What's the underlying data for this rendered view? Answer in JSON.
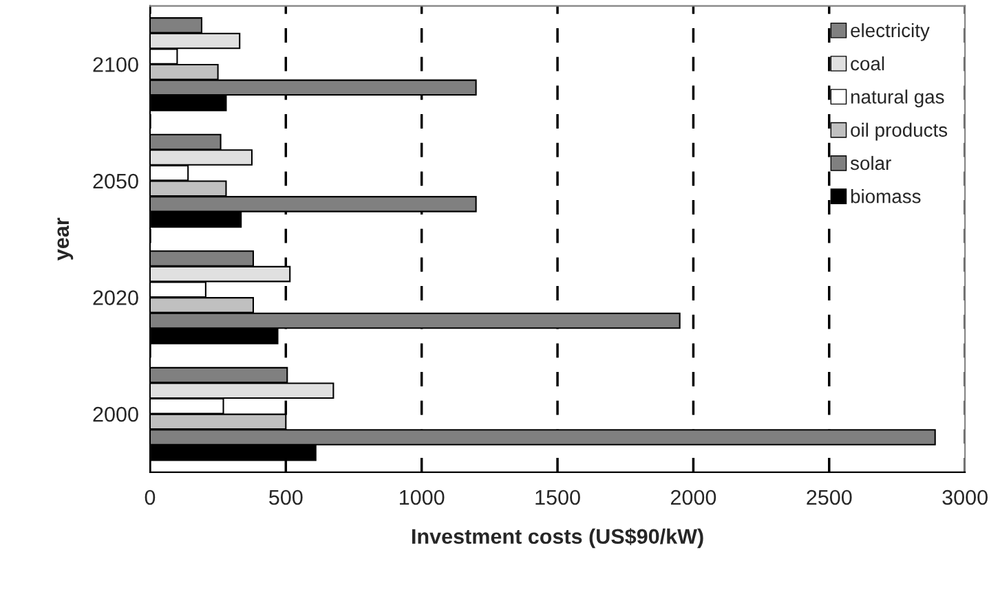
{
  "chart_data": {
    "type": "bar",
    "orientation": "horizontal",
    "xlabel": "Investment costs (US$90/kW)",
    "ylabel": "year",
    "categories": [
      "2100",
      "2050",
      "2020",
      "2000"
    ],
    "series": [
      {
        "name": "electricity",
        "color": "#808080",
        "values": [
          190,
          260,
          380,
          505
        ]
      },
      {
        "name": "coal",
        "color": "#e0e0e0",
        "values": [
          330,
          375,
          515,
          675
        ]
      },
      {
        "name": "natural gas",
        "color": "#ffffff",
        "values": [
          100,
          140,
          205,
          270
        ]
      },
      {
        "name": "oil products",
        "color": "#c0c0c0",
        "values": [
          250,
          280,
          380,
          500
        ]
      },
      {
        "name": "solar",
        "color": "#808080",
        "values": [
          1200,
          1200,
          1950,
          2890
        ]
      },
      {
        "name": "biomass",
        "color": "#000000",
        "values": [
          280,
          335,
          470,
          610
        ]
      }
    ],
    "xlim": [
      0,
      3000
    ],
    "xticks": [
      0,
      500,
      1000,
      1500,
      2000,
      2500,
      3000
    ],
    "grid": "x",
    "line_style": "dashed",
    "legend": "top right"
  }
}
